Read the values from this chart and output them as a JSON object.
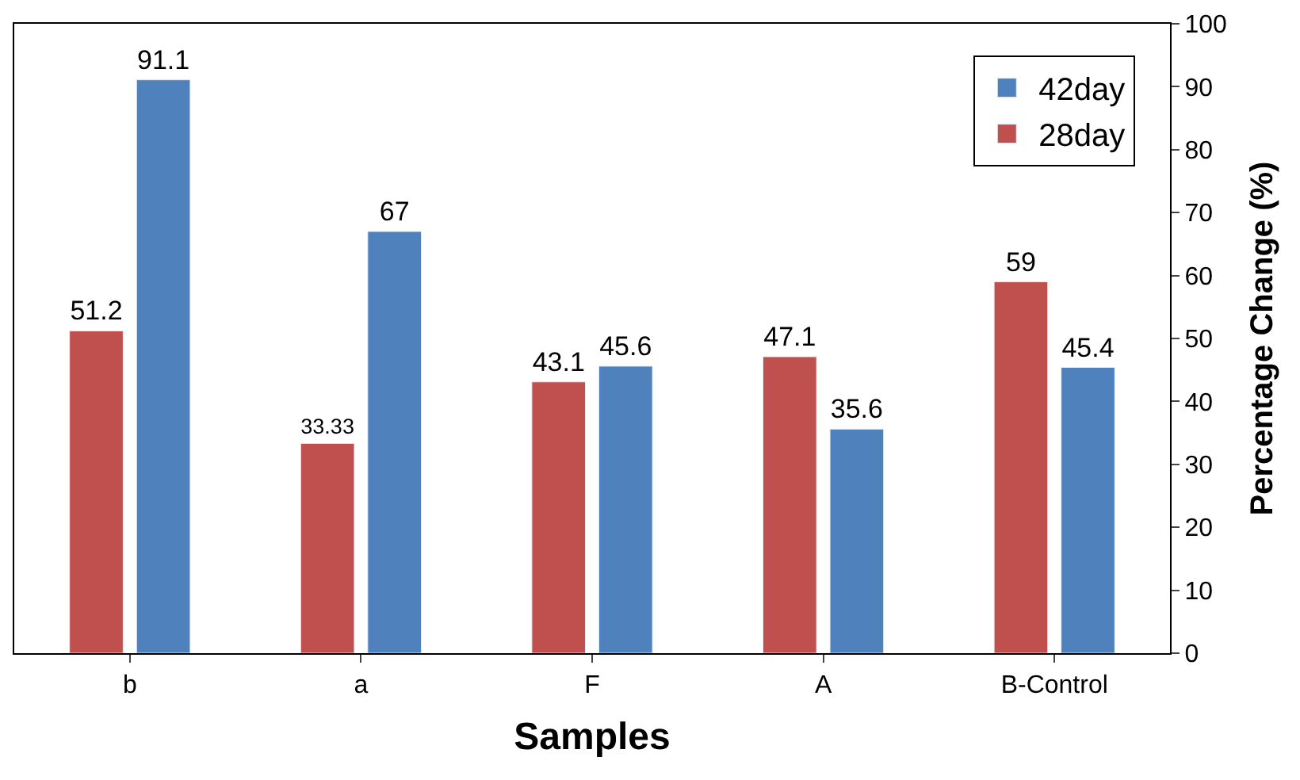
{
  "chart_data": {
    "type": "bar",
    "xlabel": "Samples",
    "ylabel": "Percentage Change (%)",
    "categories": [
      "b",
      "a",
      "F",
      "A",
      "B-Control"
    ],
    "series": [
      {
        "name": "28day",
        "color": "#c0504d",
        "values": [
          51.2,
          33.33,
          43.1,
          47.1,
          59
        ]
      },
      {
        "name": "42day",
        "color": "#4f81bd",
        "values": [
          91.1,
          67,
          45.6,
          35.6,
          45.4
        ]
      }
    ],
    "ylim": [
      0,
      100
    ],
    "yticks": [
      0,
      10,
      20,
      30,
      40,
      50,
      60,
      70,
      80,
      90,
      100
    ],
    "data_labels": true,
    "grid": false,
    "legend": "top right"
  }
}
